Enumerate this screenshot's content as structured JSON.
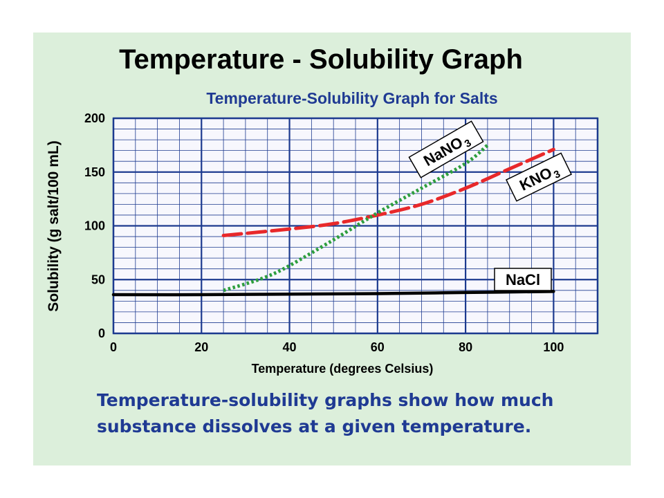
{
  "slide": {
    "title": "Temperature - Solubility Graph",
    "caption_lines": [
      "Temperature-solubility graphs show how much",
      "substance dissolves at a given temperature."
    ]
  },
  "chart_data": {
    "type": "line",
    "title": "Temperature-Solubility Graph for Salts",
    "xlabel": "Temperature (degrees Celsius)",
    "ylabel": "Solubility (g salt/100 mL)",
    "xlim": [
      0,
      110
    ],
    "ylim": [
      0,
      200
    ],
    "x_ticks": [
      0,
      20,
      40,
      60,
      80,
      100
    ],
    "y_ticks": [
      0,
      50,
      100,
      150,
      200
    ],
    "x_minor_step": 5,
    "y_minor_step": 10,
    "grid": true,
    "series": [
      {
        "name": "NaCl",
        "color": "#000000",
        "style": "solid",
        "x": [
          0,
          20,
          40,
          60,
          80,
          100
        ],
        "y": [
          36,
          36,
          36.5,
          37,
          38,
          39
        ]
      },
      {
        "name": "KNO3",
        "color": "#e8282a",
        "style": "dashed",
        "x": [
          25,
          40,
          50,
          60,
          70,
          80,
          90,
          100
        ],
        "y": [
          91,
          97,
          102,
          110,
          120,
          135,
          153,
          171
        ]
      },
      {
        "name": "NaNO3",
        "color": "#2e9e3e",
        "style": "dotted",
        "x": [
          25,
          30,
          35,
          40,
          50,
          60,
          70,
          80,
          85
        ],
        "y": [
          40,
          46,
          53,
          63,
          87,
          112,
          135,
          158,
          175
        ]
      }
    ],
    "labels": [
      {
        "series": "NaNO3",
        "text": "NaNO",
        "sub": "3"
      },
      {
        "series": "KNO3",
        "text": "KNO",
        "sub": "3"
      },
      {
        "series": "NaCl",
        "text": "NaCl",
        "sub": ""
      }
    ],
    "colors": {
      "plot_bg": "#f7f7fd",
      "grid_major": "#1c3a8f",
      "grid_minor": "#1c3a8f",
      "axis_text": "#000000"
    }
  }
}
